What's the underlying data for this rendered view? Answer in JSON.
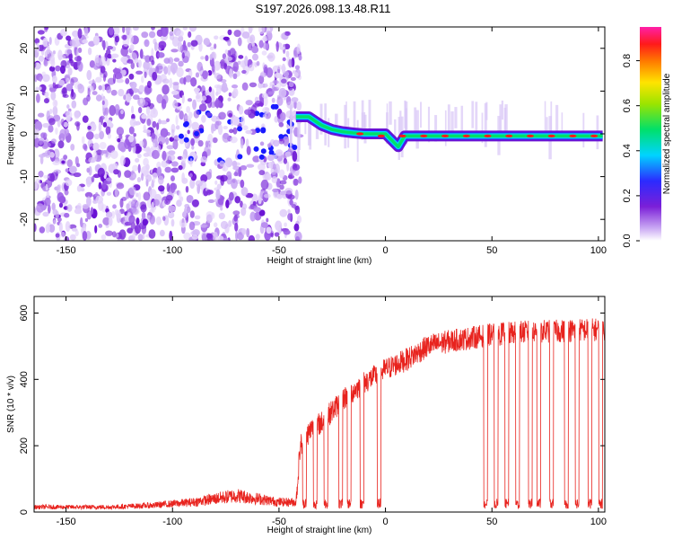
{
  "title": "S197.2026.098.13.48.R11",
  "colors": {
    "snr_line": "#e8231e",
    "axis": "#000000",
    "background": "#ffffff"
  },
  "chart_data": [
    {
      "type": "heatmap",
      "name": "spectrogram",
      "xlabel": "Height of straight line (km)",
      "ylabel": "Frequency (Hz)",
      "xlim": [
        -165,
        103
      ],
      "ylim": [
        -25,
        25
      ],
      "xticks": [
        "-150",
        "-100",
        "-50",
        "0",
        "50",
        "100"
      ],
      "xtick_values": [
        -150,
        -100,
        -50,
        0,
        50,
        100
      ],
      "yticks": [
        "-20",
        "-10",
        "0",
        "10",
        "20"
      ],
      "ytick_values": [
        -20,
        -10,
        0,
        10,
        20
      ],
      "colorbar": {
        "label": "Normalized spectral amplitude",
        "range": [
          0,
          0.95
        ],
        "ticks": [
          "0.0",
          "0.2",
          "0.4",
          "0.6",
          "0.8"
        ],
        "tick_values": [
          0.0,
          0.2,
          0.4,
          0.6,
          0.8
        ],
        "colormap": "rainbow (purple-blue-cyan-green-yellow-red-magenta)"
      },
      "carrier_track": {
        "description": "strong carrier line near 0 Hz for heights above about -45 km",
        "points": [
          [
            -42,
            4
          ],
          [
            -36,
            4
          ],
          [
            -30,
            2
          ],
          [
            -25,
            1
          ],
          [
            -20,
            0.5
          ],
          [
            -15,
            0.2
          ],
          [
            -10,
            0
          ],
          [
            0,
            0
          ],
          [
            3,
            -1.5
          ],
          [
            6,
            -3
          ],
          [
            9,
            -0.5
          ],
          [
            15,
            -0.5
          ],
          [
            30,
            -0.5
          ],
          [
            60,
            -0.5
          ],
          [
            102,
            -0.5
          ]
        ]
      },
      "noise_region": "scattered low-amplitude purple noise from -165 km to about -45 km"
    },
    {
      "type": "line",
      "name": "snr",
      "xlabel": "Height of straight line (km)",
      "ylabel": "SNR (10 * v/v)",
      "xlim": [
        -165,
        103
      ],
      "ylim": [
        0,
        650
      ],
      "xticks": [
        "-150",
        "-100",
        "-50",
        "0",
        "50",
        "100"
      ],
      "xtick_values": [
        -150,
        -100,
        -50,
        0,
        50,
        100
      ],
      "yticks": [
        "0",
        "200",
        "400",
        "600"
      ],
      "ytick_values": [
        0,
        200,
        400,
        600
      ],
      "series": [
        {
          "name": "SNR",
          "color": "#e8231e",
          "envelope_x": [
            -165,
            -130,
            -110,
            -100,
            -90,
            -80,
            -70,
            -60,
            -50,
            -42,
            -40,
            -35,
            -30,
            -20,
            -10,
            0,
            5,
            10,
            15,
            20,
            30,
            40,
            50,
            60,
            70,
            80,
            90,
            100,
            103
          ],
          "envelope_y": [
            15,
            15,
            20,
            25,
            30,
            40,
            50,
            40,
            30,
            30,
            200,
            250,
            270,
            340,
            390,
            430,
            445,
            460,
            480,
            500,
            515,
            525,
            535,
            540,
            545,
            545,
            548,
            550,
            550
          ],
          "dropouts_x": [
            -38,
            -33,
            -28,
            -21,
            -17,
            -11,
            -3,
            47,
            52,
            57,
            62,
            68,
            72,
            78,
            85,
            90,
            96,
            101
          ]
        }
      ]
    }
  ]
}
